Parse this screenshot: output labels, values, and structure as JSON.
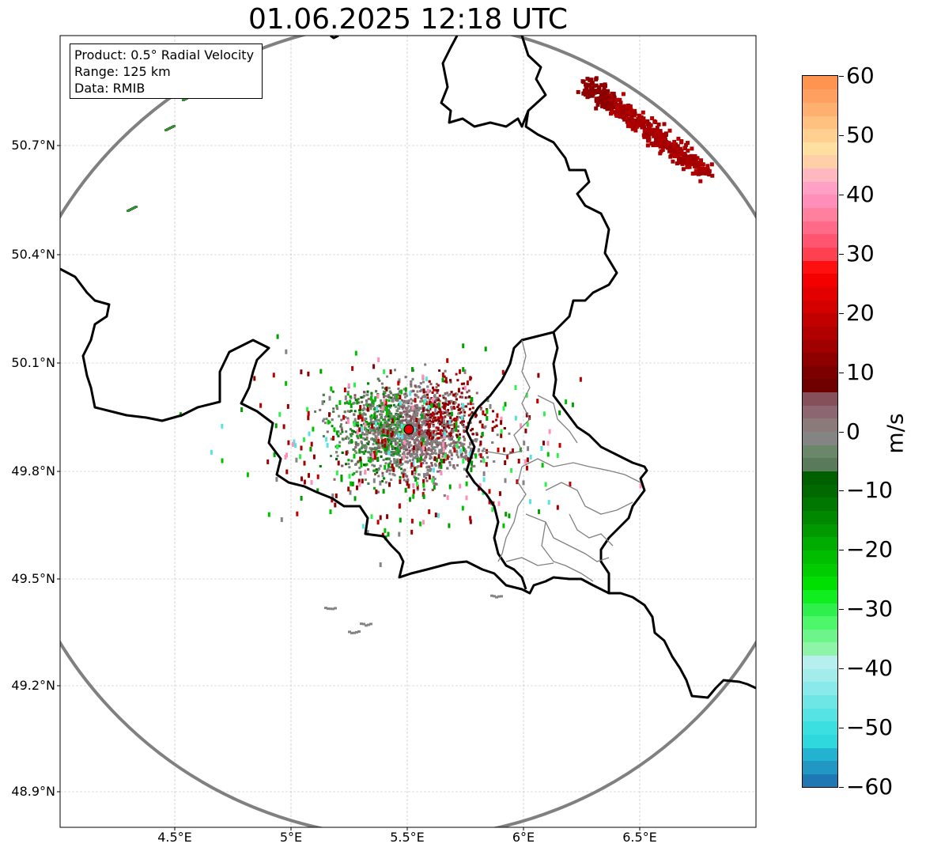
{
  "title": "01.06.2025 12:18 UTC",
  "info_box": {
    "lines": [
      "Product: 0.5° Radial Velocity",
      "Range: 125 km",
      "Data: RMIB"
    ]
  },
  "map": {
    "lat_labels": [
      "50.7°N",
      "50.4°N",
      "50.1°N",
      "49.8°N",
      "49.5°N",
      "49.2°N",
      "48.9°N"
    ],
    "lon_labels": [
      "4.5°E",
      "5°E",
      "5.5°E",
      "6°E",
      "6.5°E"
    ],
    "radar_site": {
      "lon": 5.505,
      "lat": 49.914
    },
    "range_ring_km": 125,
    "extent": {
      "lon_min": 4.0,
      "lon_max": 7.0,
      "lat_min": 48.8,
      "lat_max": 50.99
    }
  },
  "colorbar": {
    "unit": "m/s",
    "min": -60,
    "max": 60,
    "ticks": [
      "60",
      "50",
      "40",
      "30",
      "20",
      "10",
      "0",
      "−10",
      "−20",
      "−30",
      "−40",
      "−50",
      "−60"
    ],
    "colors": [
      "#1f77b4",
      "#2197c4",
      "#23b3d0",
      "#2ed8dc",
      "#3cdfe0",
      "#55e3e3",
      "#6fe6e6",
      "#8ae9ea",
      "#a2ecec",
      "#b7efef",
      "#8ef5a8",
      "#6cf589",
      "#4ef66a",
      "#2df04d",
      "#10ee20",
      "#00e000",
      "#00cc00",
      "#00bd00",
      "#00ac00",
      "#009a00",
      "#008800",
      "#007800",
      "#006a00",
      "#006000",
      "#5a7b5a",
      "#6a876a",
      "#848484",
      "#8a7a7a",
      "#8c6670",
      "#85505a",
      "#6e0000",
      "#7d0000",
      "#8e0000",
      "#a00000",
      "#b20000",
      "#c30000",
      "#d40000",
      "#e50000",
      "#f50000",
      "#ff1010",
      "#ff4050",
      "#ff5570",
      "#ff6a88",
      "#ff809e",
      "#ff8fb8",
      "#ffa0c4",
      "#ffb8c0",
      "#ffd0a8",
      "#ffe0a0",
      "#ffd090",
      "#ffc080",
      "#ffb070",
      "#ffa060",
      "#ff9450"
    ]
  }
}
